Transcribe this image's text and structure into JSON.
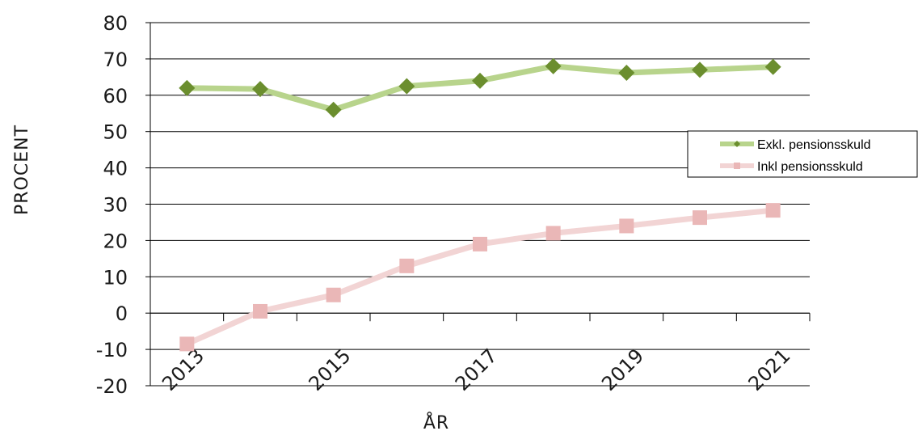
{
  "chart_data": {
    "type": "line",
    "xlabel": "ÅR",
    "ylabel": "PROCENT",
    "x": [
      "2013",
      "2014",
      "2015",
      "2016",
      "2017",
      "2018",
      "2019",
      "2020",
      "2021"
    ],
    "x_tick_labels": [
      "2013",
      "2015",
      "2017",
      "2019",
      "2021"
    ],
    "ylim": [
      -20,
      80
    ],
    "y_ticks": [
      -20,
      -10,
      0,
      10,
      20,
      30,
      40,
      50,
      60,
      70,
      80
    ],
    "grid": "horizontal",
    "legend_position": "right",
    "series": [
      {
        "name": "Exkl. pensionsskuld",
        "values": [
          62,
          61.7,
          56,
          62.5,
          64,
          68,
          66.2,
          67,
          67.8
        ],
        "line_color": "#b8d48c",
        "marker_color": "#6b8e2e",
        "marker": "diamond"
      },
      {
        "name": "Inkl pensionsskuld",
        "values": [
          -8.5,
          0.5,
          5,
          13,
          19,
          22,
          24,
          26.3,
          28.3
        ],
        "line_color": "#f2d4d4",
        "marker_color": "#eab7b7",
        "marker": "square"
      }
    ]
  }
}
